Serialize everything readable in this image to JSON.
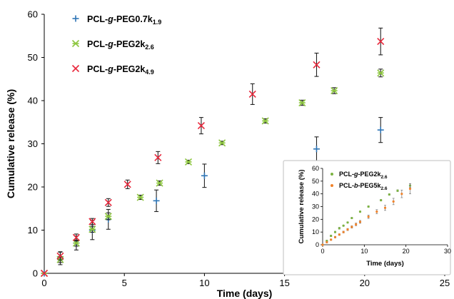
{
  "chart_data": [
    {
      "type": "scatter",
      "xlabel": "Time (days)",
      "ylabel": "Cumulative release (%)",
      "xlim": [
        0,
        25
      ],
      "ylim": [
        0,
        60
      ],
      "xticks": [
        0,
        5,
        10,
        15,
        20,
        25
      ],
      "yticks": [
        0,
        10,
        20,
        30,
        40,
        50,
        60
      ],
      "grid": false,
      "legend_position": "top-left",
      "series": [
        {
          "name_prefix": "PCL-",
          "name_italic": "g",
          "name_mid": "-PEG0.7k",
          "name_sub": "1.9",
          "marker": "plus",
          "color": "#2E75B6",
          "x": [
            0,
            1,
            2,
            3,
            4,
            7,
            10,
            17,
            21
          ],
          "y": [
            0,
            3.5,
            7.0,
            10.0,
            12.5,
            16.8,
            22.6,
            28.8,
            33.2
          ],
          "err": [
            0,
            1.5,
            1.6,
            2.2,
            2.3,
            2.5,
            2.7,
            2.8,
            2.9
          ]
        },
        {
          "name_prefix": "PCL-",
          "name_italic": "g",
          "name_mid": "-PEG2k",
          "name_sub": "2.6",
          "marker": "asterisk",
          "color": "#8DC63F",
          "x": [
            0,
            1,
            2,
            3,
            4,
            6,
            7.2,
            9,
            11.1,
            13.8,
            16.1,
            18.1,
            21
          ],
          "y": [
            0,
            3.2,
            7.0,
            10.2,
            13.2,
            17.6,
            20.9,
            25.8,
            30.2,
            35.3,
            39.5,
            42.3,
            46.4
          ],
          "err": [
            0,
            0.7,
            0.7,
            0.7,
            0.8,
            0.5,
            0.5,
            0.4,
            0.4,
            0.5,
            0.6,
            0.7,
            0.9
          ]
        },
        {
          "name_prefix": "PCL-",
          "name_italic": "g",
          "name_mid": "-PEG2k",
          "name_sub": "4.9",
          "marker": "x",
          "color": "#E8283C",
          "x": [
            0,
            1,
            2,
            3,
            4,
            5.2,
            7.1,
            9.8,
            13,
            17,
            21
          ],
          "y": [
            0,
            4.0,
            8.3,
            12.0,
            16.4,
            20.6,
            26.8,
            34.2,
            41.5,
            48.3,
            53.7
          ],
          "err": [
            0,
            0.9,
            0.8,
            0.7,
            0.9,
            1.0,
            1.4,
            1.9,
            2.4,
            2.7,
            3.1
          ]
        }
      ]
    },
    {
      "type": "scatter",
      "xlabel": "Time (days)",
      "ylabel": "Cumulative release (%)",
      "xlim": [
        0,
        30
      ],
      "ylim": [
        0,
        60
      ],
      "xticks": [
        0,
        10,
        20,
        30
      ],
      "yticks": [
        0,
        10,
        20,
        30,
        40,
        50,
        60
      ],
      "grid": false,
      "legend_position": "top-left",
      "series": [
        {
          "name_prefix": "PCL-",
          "name_italic": "g",
          "name_mid": "-PEG2k",
          "name_sub": "2.6",
          "marker": "dot",
          "color": "#7CB342",
          "x": [
            0,
            1,
            2,
            3,
            4,
            5,
            6,
            7,
            9,
            11,
            14,
            16,
            18,
            21
          ],
          "y": [
            0,
            3,
            7,
            10,
            13,
            15,
            17.5,
            21,
            26,
            30,
            35,
            39.5,
            42.5,
            46.5
          ],
          "err": [
            0,
            0.6,
            0.6,
            0.6,
            0.7,
            0.5,
            0.5,
            0.5,
            0.5,
            0.5,
            0.6,
            0.6,
            0.7,
            1.5
          ]
        },
        {
          "name_prefix": "PCL-",
          "name_italic": "b",
          "name_mid": "-PEG5k",
          "name_sub": "2.6",
          "marker": "dot",
          "color": "#F0822A",
          "x": [
            0,
            1,
            2,
            3,
            4,
            5,
            6,
            7,
            8,
            9,
            11,
            13,
            15,
            17,
            19,
            21
          ],
          "y": [
            0,
            2,
            4,
            6,
            8,
            10,
            12,
            14,
            16,
            18,
            22,
            26,
            29,
            34,
            40,
            44
          ],
          "err": [
            0,
            0.5,
            0.5,
            0.6,
            0.6,
            0.7,
            0.8,
            0.9,
            1.0,
            1.1,
            1.3,
            1.6,
            2.0,
            2.5,
            3.0,
            4.0
          ]
        }
      ]
    }
  ]
}
